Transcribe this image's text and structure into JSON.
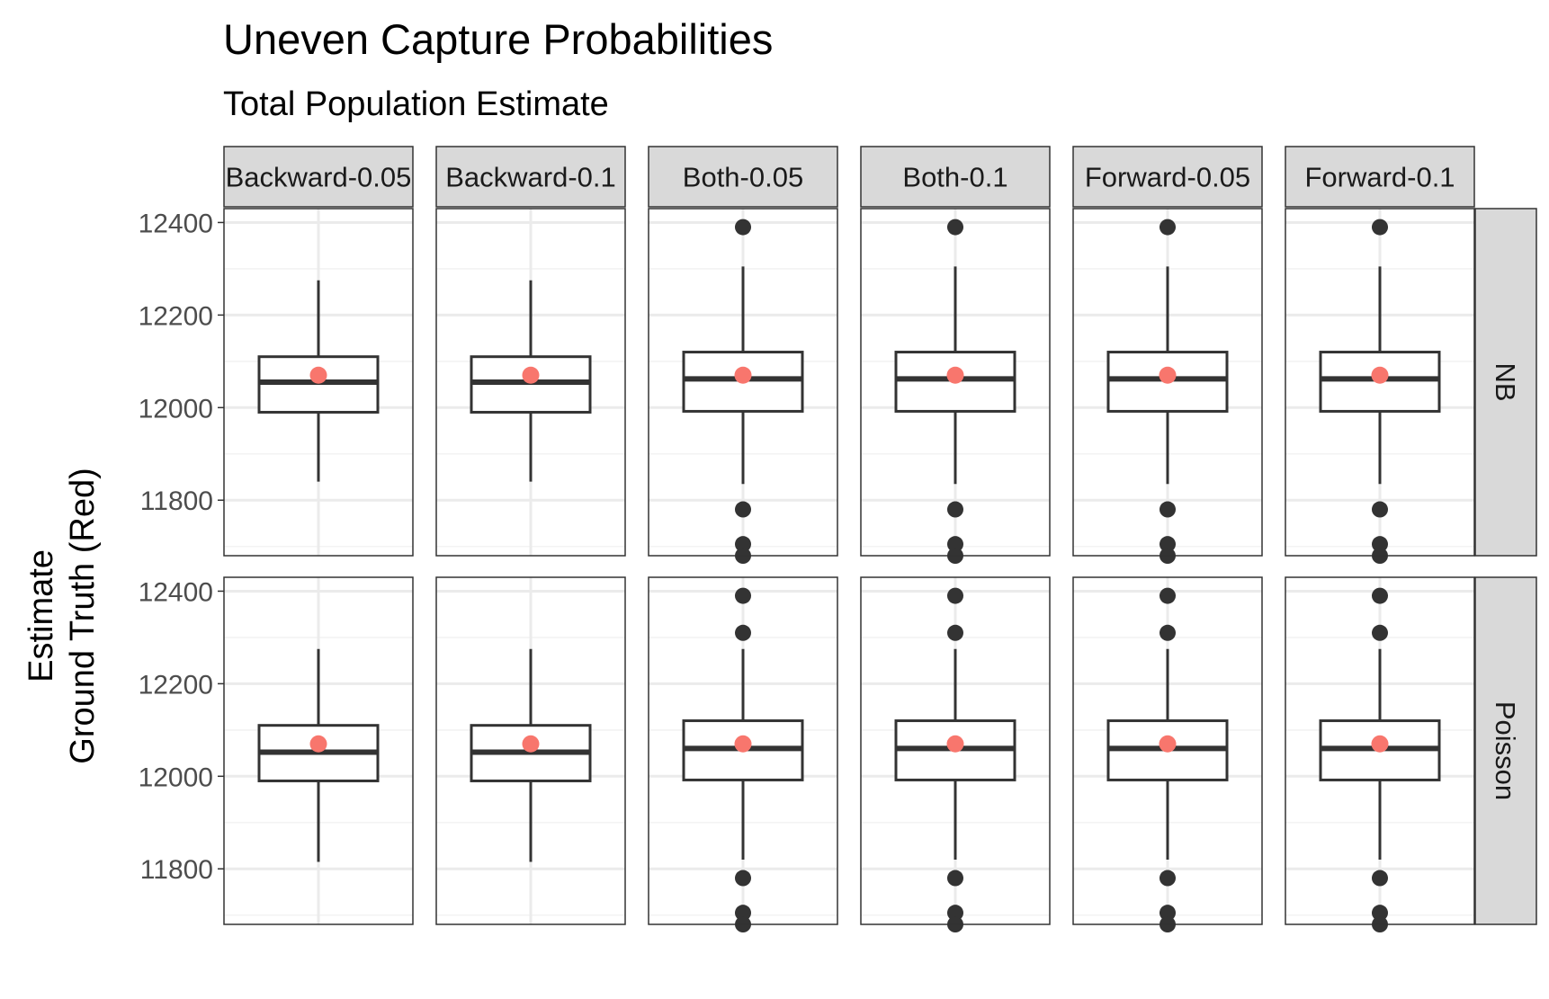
{
  "chart_data": {
    "type": "boxplot",
    "title": "Uneven Capture Probabilities",
    "subtitle": "Total Population Estimate",
    "ylabel_line1": "Estimate",
    "ylabel_line2": "Ground Truth (Red)",
    "xlabel": "",
    "ylim": [
      11680,
      12430
    ],
    "yticks": [
      11800,
      12000,
      12200,
      12400
    ],
    "grid": true,
    "columns": [
      "Backward-0.05",
      "Backward-0.1",
      "Both-0.05",
      "Both-0.1",
      "Forward-0.05",
      "Forward-0.1"
    ],
    "rows": [
      "NB",
      "Poisson"
    ],
    "ground_truth": 12070,
    "colors": {
      "box_stroke": "#333333",
      "truth_point": "#f8766d",
      "outlier": "#333333",
      "strip_fill": "#d9d9d9",
      "panel_border": "#333333",
      "grid_major": "#ebebeb",
      "grid_minor": "#f3f3f3"
    },
    "panels": [
      {
        "row": "NB",
        "column": "Backward-0.05",
        "box": {
          "whisker_low": 11840,
          "q1": 11990,
          "median": 12055,
          "q3": 12110,
          "whisker_high": 12275
        },
        "outliers": [],
        "truth": 12070
      },
      {
        "row": "NB",
        "column": "Backward-0.1",
        "box": {
          "whisker_low": 11840,
          "q1": 11990,
          "median": 12055,
          "q3": 12110,
          "whisker_high": 12275
        },
        "outliers": [],
        "truth": 12070
      },
      {
        "row": "NB",
        "column": "Both-0.05",
        "box": {
          "whisker_low": 11835,
          "q1": 11992,
          "median": 12062,
          "q3": 12120,
          "whisker_high": 12305
        },
        "outliers": [
          12390,
          11780,
          11705,
          11680
        ],
        "truth": 12070
      },
      {
        "row": "NB",
        "column": "Both-0.1",
        "box": {
          "whisker_low": 11835,
          "q1": 11992,
          "median": 12062,
          "q3": 12120,
          "whisker_high": 12305
        },
        "outliers": [
          12390,
          11780,
          11705,
          11680
        ],
        "truth": 12070
      },
      {
        "row": "NB",
        "column": "Forward-0.05",
        "box": {
          "whisker_low": 11835,
          "q1": 11992,
          "median": 12062,
          "q3": 12120,
          "whisker_high": 12305
        },
        "outliers": [
          12390,
          11780,
          11705,
          11680
        ],
        "truth": 12070
      },
      {
        "row": "NB",
        "column": "Forward-0.1",
        "box": {
          "whisker_low": 11835,
          "q1": 11992,
          "median": 12062,
          "q3": 12120,
          "whisker_high": 12305
        },
        "outliers": [
          12390,
          11780,
          11705,
          11680
        ],
        "truth": 12070
      },
      {
        "row": "Poisson",
        "column": "Backward-0.05",
        "box": {
          "whisker_low": 11815,
          "q1": 11990,
          "median": 12052,
          "q3": 12110,
          "whisker_high": 12275
        },
        "outliers": [],
        "truth": 12070
      },
      {
        "row": "Poisson",
        "column": "Backward-0.1",
        "box": {
          "whisker_low": 11815,
          "q1": 11990,
          "median": 12052,
          "q3": 12110,
          "whisker_high": 12275
        },
        "outliers": [],
        "truth": 12070
      },
      {
        "row": "Poisson",
        "column": "Both-0.05",
        "box": {
          "whisker_low": 11820,
          "q1": 11992,
          "median": 12060,
          "q3": 12120,
          "whisker_high": 12275
        },
        "outliers": [
          12390,
          12310,
          11780,
          11705,
          11680
        ],
        "truth": 12070
      },
      {
        "row": "Poisson",
        "column": "Both-0.1",
        "box": {
          "whisker_low": 11820,
          "q1": 11992,
          "median": 12060,
          "q3": 12120,
          "whisker_high": 12275
        },
        "outliers": [
          12390,
          12310,
          11780,
          11705,
          11680
        ],
        "truth": 12070
      },
      {
        "row": "Poisson",
        "column": "Forward-0.05",
        "box": {
          "whisker_low": 11820,
          "q1": 11992,
          "median": 12060,
          "q3": 12120,
          "whisker_high": 12275
        },
        "outliers": [
          12390,
          12310,
          11780,
          11705,
          11680
        ],
        "truth": 12070
      },
      {
        "row": "Poisson",
        "column": "Forward-0.1",
        "box": {
          "whisker_low": 11820,
          "q1": 11992,
          "median": 12060,
          "q3": 12120,
          "whisker_high": 12275
        },
        "outliers": [
          12390,
          12310,
          11780,
          11705,
          11680
        ],
        "truth": 12070
      }
    ]
  }
}
